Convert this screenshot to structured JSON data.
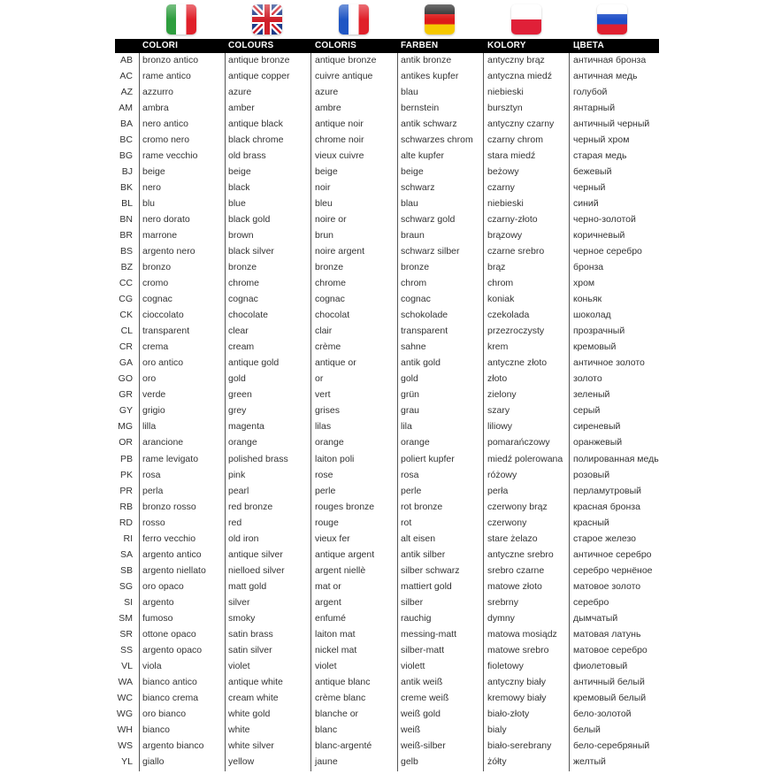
{
  "flags": [
    {
      "country": "Italy",
      "colors": [
        "#2e9e3e",
        "#ffffff",
        "#e0202a"
      ]
    },
    {
      "country": "United Kingdom",
      "colors": [
        "#1d3a8a",
        "#ffffff",
        "#d0202a"
      ]
    },
    {
      "country": "France",
      "colors": [
        "#1f56c4",
        "#ffffff",
        "#e0202a"
      ]
    },
    {
      "country": "Germany",
      "colors": [
        "#222222",
        "#dd1a1a",
        "#f5c800"
      ]
    },
    {
      "country": "Poland",
      "colors": [
        "#ffffff",
        "#e02038"
      ]
    },
    {
      "country": "Russia",
      "colors": [
        "#ffffff",
        "#2050c8",
        "#e02030"
      ]
    }
  ],
  "headers": [
    "COLORI",
    "COLOURS",
    "COLORIS",
    "FARBEN",
    "KOLORY",
    "ЦВЕТА"
  ],
  "rows": [
    [
      "AB",
      "bronzo antico",
      "antique bronze",
      "antique bronze",
      "antik bronze",
      "antyczny brąz",
      "античная бронза"
    ],
    [
      "AC",
      "rame antico",
      "antique copper",
      "cuivre antique",
      "antikes kupfer",
      "antyczna miedź",
      "античная медь"
    ],
    [
      "AZ",
      "azzurro",
      "azure",
      "azure",
      "blau",
      "niebieski",
      "голубой"
    ],
    [
      "AM",
      "ambra",
      "amber",
      "ambre",
      "bernstein",
      "bursztyn",
      "янтарный"
    ],
    [
      "BA",
      "nero antico",
      "antique black",
      "antique noir",
      "antik schwarz",
      "antyczny czarny",
      "античный черный"
    ],
    [
      "BC",
      "cromo nero",
      "black chrome",
      "chrome noir",
      "schwarzes chrom",
      "czarny chrom",
      "черный хром"
    ],
    [
      "BG",
      "rame vecchio",
      "old brass",
      "vieux cuivre",
      "alte kupfer",
      "stara miedź",
      "старая медь"
    ],
    [
      "BJ",
      "beige",
      "beige",
      "beige",
      "beige",
      "beżowy",
      "бежевый"
    ],
    [
      "BK",
      "nero",
      "black",
      "noir",
      "schwarz",
      "czarny",
      "черный"
    ],
    [
      "BL",
      "blu",
      "blue",
      "bleu",
      "blau",
      "niebieski",
      "синий"
    ],
    [
      "BN",
      "nero dorato",
      "black gold",
      "noire or",
      "schwarz gold",
      "czarny-złoto",
      "черно-золотой"
    ],
    [
      "BR",
      "marrone",
      "brown",
      "brun",
      "braun",
      "brązowy",
      "коричневый"
    ],
    [
      "BS",
      "argento nero",
      "black silver",
      "noire argent",
      "schwarz silber",
      "czarne srebro",
      "черное серебро"
    ],
    [
      "BZ",
      "bronzo",
      "bronze",
      "bronze",
      "bronze",
      "brąz",
      "бронза"
    ],
    [
      "CC",
      "cromo",
      "chrome",
      "chrome",
      "chrom",
      "chrom",
      "хром"
    ],
    [
      "CG",
      "cognac",
      "cognac",
      "cognac",
      "cognac",
      "koniak",
      "коньяк"
    ],
    [
      "CK",
      "cioccolato",
      "chocolate",
      "chocolat",
      "schokolade",
      "czekolada",
      "шоколад"
    ],
    [
      "CL",
      "transparent",
      "clear",
      "clair",
      "transparent",
      "przezroczysty",
      "прозрачный"
    ],
    [
      "CR",
      "crema",
      "cream",
      "crème",
      "sahne",
      "krem",
      "кремовый"
    ],
    [
      "GA",
      "oro antico",
      "antique gold",
      "antique or",
      "antik gold",
      "antyczne złoto",
      "античное золото"
    ],
    [
      "GO",
      "oro",
      "gold",
      "or",
      "gold",
      "złoto",
      "золото"
    ],
    [
      "GR",
      "verde",
      "green",
      "vert",
      "grün",
      "zielony",
      "зеленый"
    ],
    [
      "GY",
      "grigio",
      "grey",
      "grises",
      "grau",
      "szary",
      "серый"
    ],
    [
      "MG",
      "lilla",
      "magenta",
      "lilas",
      "lila",
      "liliowy",
      "сиреневый"
    ],
    [
      "OR",
      "arancione",
      "orange",
      "orange",
      "orange",
      "pomarańczowy",
      "оранжевый"
    ],
    [
      "PB",
      "rame levigato",
      "polished brass",
      "laiton poli",
      "poliert kupfer",
      "miedź polerowana",
      "полированная медь"
    ],
    [
      "PK",
      "rosa",
      "pink",
      "rose",
      "rosa",
      "różowy",
      "розовый"
    ],
    [
      "PR",
      "perla",
      "pearl",
      "perle",
      "perle",
      "perła",
      "перламутровый"
    ],
    [
      "RB",
      "bronzo rosso",
      "red bronze",
      "rouges bronze",
      "rot bronze",
      "czerwony brąz",
      "красная бронза"
    ],
    [
      "RD",
      "rosso",
      "red",
      "rouge",
      "rot",
      "czerwony",
      "красный"
    ],
    [
      "RI",
      "ferro vecchio",
      "old iron",
      "vieux fer",
      "alt eisen",
      "stare żelazo",
      "старое железо"
    ],
    [
      "SA",
      "argento antico",
      "antique silver",
      "antique argent",
      "antik silber",
      "antyczne srebro",
      "античное серебро"
    ],
    [
      "SB",
      "argento niellato",
      "nielloed silver",
      "argent niellè",
      "silber schwarz",
      "srebro czarne",
      "серебро чернёное"
    ],
    [
      "SG",
      "oro opaco",
      "matt gold",
      "mat or",
      "mattiert gold",
      "matowe złoto",
      "матовое золото"
    ],
    [
      "SI",
      "argento",
      "silver",
      "argent",
      "silber",
      "srebrny",
      "серебро"
    ],
    [
      "SM",
      "fumoso",
      "smoky",
      "enfumé",
      "rauchig",
      "dymny",
      "дымчатый"
    ],
    [
      "SR",
      "ottone opaco",
      "satin brass",
      "laiton mat",
      "messing-matt",
      "matowa mosiądz",
      "матовая латунь"
    ],
    [
      "SS",
      "argento opaco",
      "satin silver",
      "nickel mat",
      "silber-matt",
      "matowe srebro",
      "матовое серебро"
    ],
    [
      "VL",
      "viola",
      "violet",
      "violet",
      "violett",
      "fioletowy",
      "фиолетовый"
    ],
    [
      "WA",
      "bianco antico",
      "antique white",
      "antique blanc",
      "antik weiß",
      "antyczny biały",
      "античный белый"
    ],
    [
      "WC",
      "bianco crema",
      "cream white",
      "crème blanc",
      "creme weiß",
      "kremowy biały",
      "кремовый белый"
    ],
    [
      "WG",
      "oro bianco",
      "white gold",
      "blanche or",
      "weiß gold",
      "biało-złoty",
      "бело-золотой"
    ],
    [
      "WH",
      "bianco",
      "white",
      "blanc",
      "weiß",
      "bialy",
      "белый"
    ],
    [
      "WS",
      "argento bianco",
      "white silver",
      "blanc-argenté",
      "weiß-silber",
      "biało-serebrany",
      "бело-серебряный"
    ],
    [
      "YL",
      "giallo",
      "yellow",
      "jaune",
      "gelb",
      "żółty",
      "желтый"
    ]
  ]
}
